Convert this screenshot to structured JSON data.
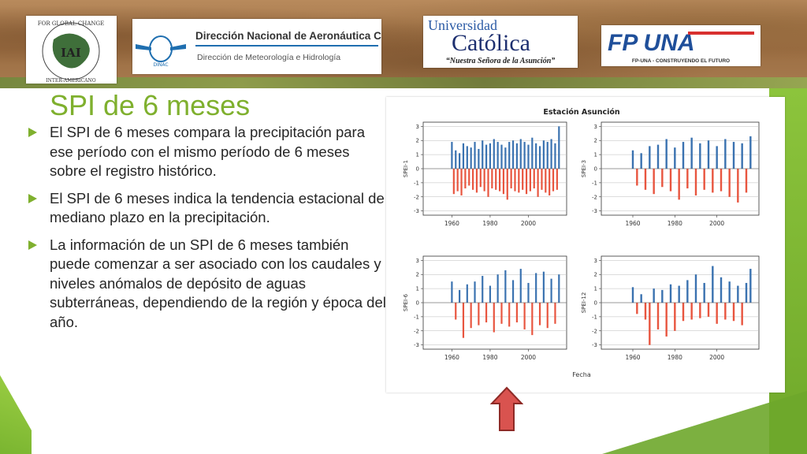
{
  "slide": {
    "title": "SPI de 6 meses",
    "bullets": [
      "El SPI de 6 meses compara la precipitación para ese período con el mismo período de 6 meses sobre el registro histórico.",
      "El SPI de 6 meses indica la tendencia estacional de mediano plazo en la precipitación.",
      "La información de un SPI de 6 meses también puede comenzar a ser asociado con los caudales y niveles anómalos de depósito de aguas subterráneas, dependiendo de la región y época del año."
    ]
  },
  "logos": {
    "iai": {
      "ring_top": "FOR GLOBAL CHANGE",
      "ring_left": "INTER-AMERICAN INSTITUTE",
      "ring_bottom": "INTER-AMERICANO",
      "center": "IAI"
    },
    "dinac": {
      "title": "Dirección Nacional de Aeronáutica Civil",
      "subtitle": "Dirección de Meteorología e Hidrología",
      "badge": "DINAC"
    },
    "uc": {
      "line1": "Universidad",
      "line2": "Católica",
      "line3": "“Nuestra Señora de la Asunción”"
    },
    "fpuna": {
      "mark": "FP UNA",
      "tagline": "FP-UNA - CONSTRUYENDO EL FUTURO"
    }
  },
  "colors": {
    "accent": "#7fb02e",
    "positive": "#3a72b0",
    "negative": "#e8553f",
    "arrow": "#d9534f"
  },
  "chart_data": {
    "type": "bar",
    "title": "Estación Asunción",
    "xlabel": "Fecha",
    "x_ticks": [
      1960,
      1980,
      2000
    ],
    "y_ticks": [
      -3,
      -2,
      -1,
      0,
      1,
      2,
      3
    ],
    "xlim": [
      1945,
      2020
    ],
    "ylim": [
      -3.3,
      3.3
    ],
    "panels": [
      {
        "ylabel": "SPEI-1",
        "x": [
          1960,
          1961,
          1962,
          1963,
          1964,
          1965,
          1966,
          1967,
          1968,
          1969,
          1970,
          1971,
          1972,
          1973,
          1974,
          1975,
          1976,
          1977,
          1978,
          1979,
          1980,
          1981,
          1982,
          1983,
          1984,
          1985,
          1986,
          1987,
          1988,
          1989,
          1990,
          1991,
          1992,
          1993,
          1994,
          1995,
          1996,
          1997,
          1998,
          1999,
          2000,
          2001,
          2002,
          2003,
          2004,
          2005,
          2006,
          2007,
          2008,
          2009,
          2010,
          2011,
          2012,
          2013,
          2014,
          2015,
          2016
        ],
        "values": [
          1.9,
          -1.8,
          1.3,
          -1.6,
          1.1,
          -1.9,
          1.8,
          -1.4,
          1.6,
          -1.2,
          1.5,
          -1.5,
          1.9,
          -1.7,
          1.4,
          -1.3,
          2.0,
          -1.6,
          1.7,
          -2.0,
          1.8,
          -1.4,
          2.1,
          -1.5,
          1.9,
          -1.6,
          1.7,
          -1.8,
          1.5,
          -2.2,
          1.9,
          -1.4,
          2.0,
          -1.6,
          1.8,
          -1.7,
          2.1,
          -1.5,
          1.9,
          -1.8,
          1.7,
          -1.6,
          2.2,
          -1.4,
          1.8,
          -2.0,
          1.6,
          -1.5,
          2.0,
          -1.7,
          1.9,
          -1.9,
          2.1,
          -1.6,
          1.8,
          -1.5,
          3.0
        ]
      },
      {
        "ylabel": "SPEI-3",
        "x": [
          1960,
          1962,
          1964,
          1966,
          1968,
          1970,
          1972,
          1974,
          1976,
          1978,
          1980,
          1982,
          1984,
          1986,
          1988,
          1990,
          1992,
          1994,
          1996,
          1998,
          2000,
          2002,
          2004,
          2006,
          2008,
          2010,
          2012,
          2014,
          2016
        ],
        "values": [
          1.3,
          -1.2,
          1.1,
          -1.5,
          1.6,
          -1.8,
          1.7,
          -1.3,
          2.1,
          -1.6,
          1.5,
          -2.2,
          1.9,
          -1.4,
          2.2,
          -1.9,
          1.8,
          -1.5,
          2.0,
          -1.7,
          1.6,
          -1.6,
          2.1,
          -2.0,
          1.9,
          -2.4,
          1.8,
          -1.7,
          2.3
        ]
      },
      {
        "ylabel": "SPEI-6",
        "x": [
          1960,
          1962,
          1964,
          1966,
          1968,
          1970,
          1972,
          1974,
          1976,
          1978,
          1980,
          1982,
          1984,
          1986,
          1988,
          1990,
          1992,
          1994,
          1996,
          1998,
          2000,
          2002,
          2004,
          2006,
          2008,
          2010,
          2012,
          2014,
          2016
        ],
        "values": [
          1.5,
          -1.2,
          0.9,
          -2.5,
          1.3,
          -1.8,
          1.5,
          -1.6,
          1.9,
          -1.4,
          1.2,
          -2.1,
          2.0,
          -1.5,
          2.3,
          -1.7,
          1.6,
          -1.4,
          2.4,
          -1.9,
          1.4,
          -2.3,
          2.1,
          -1.6,
          2.2,
          -1.8,
          1.7,
          -1.5,
          2.0
        ]
      },
      {
        "ylabel": "SPEI-12",
        "x": [
          1960,
          1962,
          1964,
          1966,
          1968,
          1970,
          1972,
          1974,
          1976,
          1978,
          1980,
          1982,
          1984,
          1986,
          1988,
          1990,
          1992,
          1994,
          1996,
          1998,
          2000,
          2002,
          2004,
          2006,
          2008,
          2010,
          2012,
          2014,
          2016
        ],
        "values": [
          1.1,
          -0.8,
          0.6,
          -1.2,
          -3.0,
          1.0,
          -1.9,
          0.9,
          -2.4,
          1.3,
          -2.0,
          1.2,
          -1.3,
          1.6,
          -1.2,
          2.0,
          -1.1,
          1.4,
          -1.0,
          2.6,
          -1.5,
          1.8,
          -1.2,
          1.5,
          -1.3,
          1.2,
          -1.6,
          1.4,
          2.4
        ]
      }
    ]
  }
}
